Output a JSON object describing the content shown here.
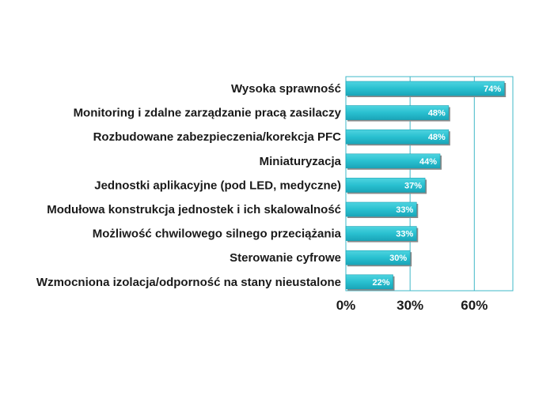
{
  "chart_data": {
    "type": "bar",
    "orientation": "horizontal",
    "categories": [
      "Wysoka sprawność",
      "Monitoring i zdalne zarządzanie pracą zasilaczy",
      "Rozbudowane zabezpieczenia/korekcja PFC",
      "Miniaturyzacja",
      "Jednostki aplikacyjne (pod LED, medyczne)",
      "Modułowa konstrukcja jednostek i ich skalowalność",
      "Możliwość chwilowego silnego przeciążania",
      "Sterowanie cyfrowe",
      "Wzmocniona izolacja/odporność na stany nieustalone"
    ],
    "values": [
      74,
      48,
      48,
      44,
      37,
      33,
      33,
      30,
      22
    ],
    "data_labels": [
      "74%",
      "48%",
      "48%",
      "44%",
      "37%",
      "33%",
      "33%",
      "30%",
      "22%"
    ],
    "x_ticks": [
      "0%",
      "30%",
      "60%"
    ],
    "x_tick_values": [
      0,
      30,
      60
    ],
    "xlim": [
      0,
      78
    ],
    "title": "",
    "xlabel": "",
    "ylabel": "",
    "grid": true,
    "legend": "none",
    "colors": {
      "bar": "#29c0d0",
      "bar_shadow": "#8a8a8a",
      "gridline": "#3fb8c8",
      "frame": "#3fb8c8"
    }
  }
}
